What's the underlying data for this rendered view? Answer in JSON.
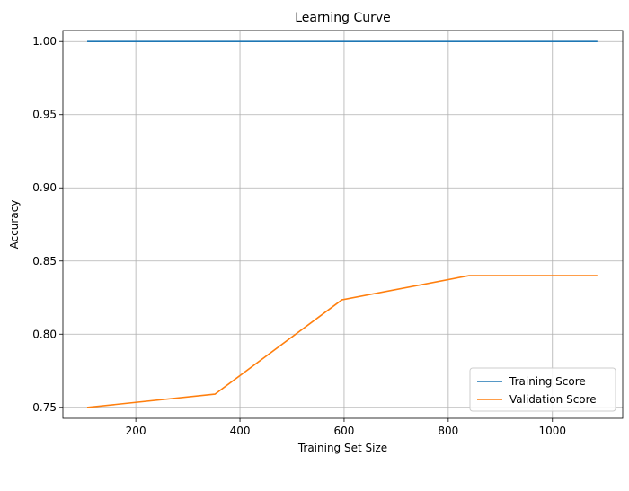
{
  "chart_data": {
    "type": "line",
    "title": "Learning Curve",
    "xlabel": "Training Set Size",
    "ylabel": "Accuracy",
    "xlim": [
      60,
      1135
    ],
    "ylim": [
      0.7425,
      1.0075
    ],
    "xticks": [
      200,
      400,
      600,
      800,
      1000
    ],
    "xtick_labels": [
      "200",
      "400",
      "600",
      "800",
      "1000"
    ],
    "yticks": [
      0.75,
      0.8,
      0.85,
      0.9,
      0.95,
      1.0
    ],
    "ytick_labels": [
      "0.75",
      "0.80",
      "0.85",
      "0.90",
      "0.95",
      "1.00"
    ],
    "grid": true,
    "legend_position": "lower-right",
    "x": [
      108,
      352,
      596,
      840,
      1085
    ],
    "series": [
      {
        "name": "Training Score",
        "color": "#1f77b4",
        "values": [
          1.0,
          1.0,
          1.0,
          1.0,
          1.0
        ]
      },
      {
        "name": "Validation Score",
        "color": "#ff7f0e",
        "values": [
          0.75,
          0.759,
          0.8235,
          0.84,
          0.84
        ]
      }
    ]
  }
}
